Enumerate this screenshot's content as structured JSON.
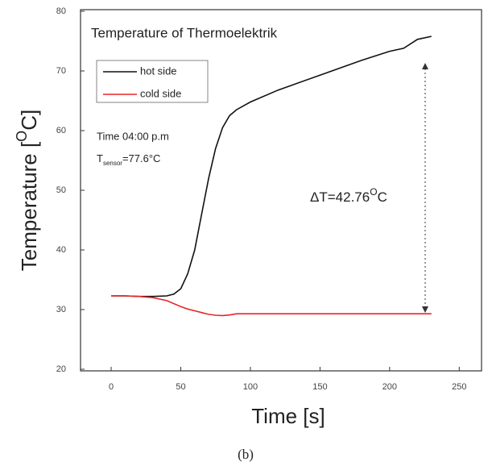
{
  "chart_data": {
    "type": "line",
    "title": "Temperature of Thermoelektrik",
    "x_label": "Time [s]",
    "y_label": {
      "text": "Temperature [",
      "sup": "O",
      "end": "C]"
    },
    "caption": "(b)",
    "annotations": [
      {
        "text": "Time 04:00 p.m"
      },
      {
        "text": "T",
        "sub": "sensor",
        "end": "=77.6°C"
      },
      {
        "text": "ΔT=42.76",
        "sup": "O",
        "end": "C"
      }
    ],
    "x": [
      0,
      10,
      20,
      30,
      40,
      45,
      50,
      55,
      60,
      65,
      70,
      75,
      80,
      85,
      90,
      100,
      120,
      150,
      180,
      200,
      210,
      220,
      230
    ],
    "series": [
      {
        "name": "hot side",
        "color": "#111111",
        "values": [
          32.3,
          32.3,
          32.2,
          32.2,
          32.3,
          32.6,
          33.5,
          36,
          40,
          46,
          52,
          57,
          60.5,
          62.5,
          63.5,
          64.8,
          66.8,
          69.3,
          71.8,
          73.3,
          73.8,
          75.3,
          75.8
        ]
      },
      {
        "name": "cold side",
        "color": "#e8262b",
        "values": [
          32.3,
          32.3,
          32.2,
          32,
          31.5,
          31,
          30.5,
          30.1,
          29.8,
          29.5,
          29.2,
          29.05,
          29.0,
          29.1,
          29.3,
          29.3,
          29.3,
          29.3,
          29.3,
          29.3,
          29.3,
          29.3,
          29.3
        ]
      }
    ],
    "xlim": [
      -22,
      266
    ],
    "ylim": [
      20,
      80
    ],
    "xticks": [
      0,
      50,
      100,
      150,
      200,
      250
    ],
    "yticks": [
      20,
      30,
      40,
      50,
      60,
      70,
      80
    ],
    "legend": "upper left"
  }
}
